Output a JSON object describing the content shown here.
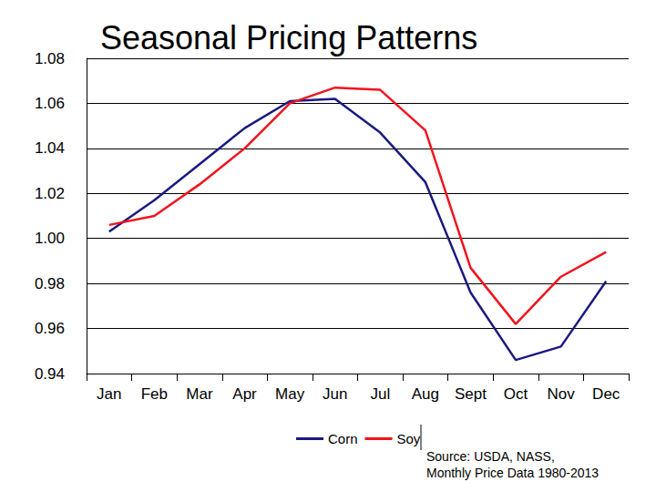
{
  "chart_data": {
    "type": "line",
    "title": "Seasonal Pricing Patterns",
    "categories": [
      "Jan",
      "Feb",
      "Mar",
      "Apr",
      "May",
      "Jun",
      "Jul",
      "Aug",
      "Sept",
      "Oct",
      "Nov",
      "Dec"
    ],
    "series": [
      {
        "name": "Corn",
        "color": "#1a1a80",
        "values": [
          1.003,
          1.017,
          1.033,
          1.049,
          1.061,
          1.062,
          1.047,
          1.025,
          0.976,
          0.946,
          0.952,
          0.981
        ]
      },
      {
        "name": "Soy",
        "color": "#f0141e",
        "values": [
          1.006,
          1.01,
          1.024,
          1.04,
          1.06,
          1.067,
          1.066,
          1.048,
          0.987,
          0.962,
          0.983,
          0.994
        ]
      }
    ],
    "ylim": [
      0.94,
      1.08
    ],
    "yticks": [
      0.94,
      0.96,
      0.98,
      {
        "value": 1,
        "label": "1.00"
      },
      1.02,
      1.04,
      1.06,
      1.08
    ],
    "grid": true,
    "legend": "bottom",
    "annotations": [
      "Source: USDA, NASS,",
      "Monthly Price Data 1980-2013"
    ]
  }
}
